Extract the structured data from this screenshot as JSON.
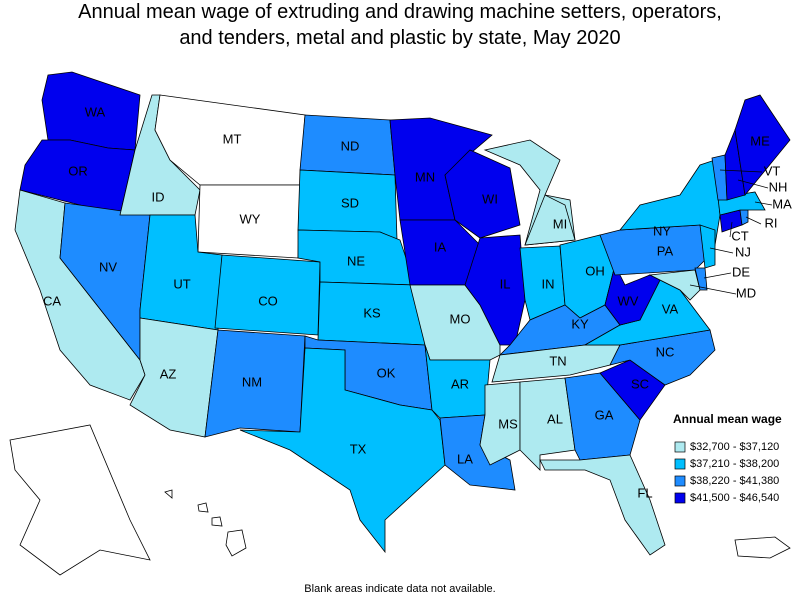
{
  "title": "Annual mean wage of extruding and drawing machine setters, operators, and tenders, metal and plastic by state, May 2020",
  "legend": {
    "title": "Annual mean wage",
    "bins": [
      {
        "label": "$32,700 - $37,120",
        "color": "#aeeaf0"
      },
      {
        "label": "$37,210 - $38,200",
        "color": "#00bfff"
      },
      {
        "label": "$38,220 - $41,380",
        "color": "#1e8cff"
      },
      {
        "label": "$41,500 - $46,540",
        "color": "#0000ee"
      }
    ]
  },
  "states": [
    {
      "abbr": "WA",
      "bin": 3
    },
    {
      "abbr": "OR",
      "bin": 3
    },
    {
      "abbr": "CA",
      "bin": 0
    },
    {
      "abbr": "NV",
      "bin": 2
    },
    {
      "abbr": "ID",
      "bin": 0
    },
    {
      "abbr": "MT",
      "bin": null
    },
    {
      "abbr": "WY",
      "bin": null
    },
    {
      "abbr": "UT",
      "bin": 1
    },
    {
      "abbr": "CO",
      "bin": 1
    },
    {
      "abbr": "AZ",
      "bin": 0
    },
    {
      "abbr": "NM",
      "bin": 2
    },
    {
      "abbr": "ND",
      "bin": 2
    },
    {
      "abbr": "SD",
      "bin": 1
    },
    {
      "abbr": "NE",
      "bin": 1
    },
    {
      "abbr": "KS",
      "bin": 1
    },
    {
      "abbr": "OK",
      "bin": 2
    },
    {
      "abbr": "TX",
      "bin": 1
    },
    {
      "abbr": "MN",
      "bin": 3
    },
    {
      "abbr": "IA",
      "bin": 3
    },
    {
      "abbr": "MO",
      "bin": 0
    },
    {
      "abbr": "AR",
      "bin": 1
    },
    {
      "abbr": "LA",
      "bin": 2
    },
    {
      "abbr": "WI",
      "bin": 3
    },
    {
      "abbr": "IL",
      "bin": 3
    },
    {
      "abbr": "MI",
      "bin": 0
    },
    {
      "abbr": "IN",
      "bin": 1
    },
    {
      "abbr": "OH",
      "bin": 1
    },
    {
      "abbr": "KY",
      "bin": 2
    },
    {
      "abbr": "TN",
      "bin": 0
    },
    {
      "abbr": "MS",
      "bin": 0
    },
    {
      "abbr": "AL",
      "bin": 0
    },
    {
      "abbr": "GA",
      "bin": 2
    },
    {
      "abbr": "FL",
      "bin": 0
    },
    {
      "abbr": "SC",
      "bin": 3
    },
    {
      "abbr": "NC",
      "bin": 2
    },
    {
      "abbr": "VA",
      "bin": 1
    },
    {
      "abbr": "WV",
      "bin": 3
    },
    {
      "abbr": "PA",
      "bin": 2
    },
    {
      "abbr": "NY",
      "bin": 1
    },
    {
      "abbr": "MD",
      "bin": 0
    },
    {
      "abbr": "DE",
      "bin": 2
    },
    {
      "abbr": "NJ",
      "bin": 1
    },
    {
      "abbr": "CT",
      "bin": 3
    },
    {
      "abbr": "RI",
      "bin": 2
    },
    {
      "abbr": "MA",
      "bin": 1
    },
    {
      "abbr": "VT",
      "bin": 2
    },
    {
      "abbr": "NH",
      "bin": 3
    },
    {
      "abbr": "ME",
      "bin": 3
    },
    {
      "abbr": "AK",
      "bin": null
    },
    {
      "abbr": "HI",
      "bin": null
    }
  ],
  "note": "Blank areas indicate data not available."
}
